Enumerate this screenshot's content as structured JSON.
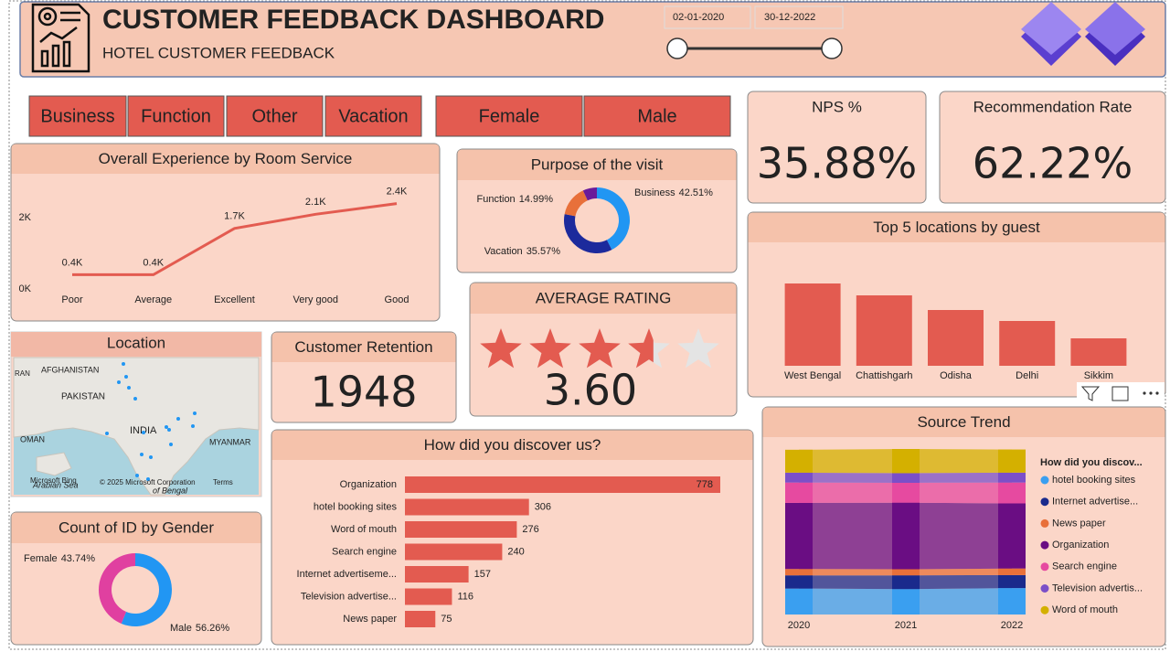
{
  "header": {
    "title": "CUSTOMER FEEDBACK DASHBOARD",
    "subtitle": "HOTEL CUSTOMER  FEEDBACK",
    "date_start": "02-01-2020",
    "date_end": "30-12-2022"
  },
  "slicers": {
    "purpose": [
      "Business",
      "Function",
      "Other",
      "Vacation"
    ],
    "gender": [
      "Female",
      "Male"
    ]
  },
  "kpis": [
    {
      "title": "NPS %",
      "value": "35.88%"
    },
    {
      "title": "Recommendation Rate",
      "value": "62.22%"
    },
    {
      "title": "Customer Retention",
      "value": "1948"
    }
  ],
  "rating": {
    "title": "AVERAGE RATING",
    "value": 3.6,
    "value_label": "3.60",
    "stars": 5
  },
  "map": {
    "title": "Location",
    "labels": [
      "RAN",
      "AFGHANISTAN",
      "PAKISTAN",
      "INDIA",
      "OMAN",
      "MYANMAR",
      "Arabian Sea",
      "of Bengal"
    ],
    "brand": "Microsoft Bing",
    "copyright": "© 2025 Microsoft Corporation",
    "terms": "Terms"
  },
  "chart_data": [
    {
      "type": "line",
      "title": "Overall Experience by Room Service",
      "categories": [
        "Poor",
        "Average",
        "Excellent",
        "Very good",
        "Good"
      ],
      "values": [
        400,
        400,
        1700,
        2100,
        2400
      ],
      "value_labels": [
        "0.4K",
        "0.4K",
        "1.7K",
        "2.1K",
        "2.4K"
      ],
      "color": "#e35b50",
      "ylim": [
        0,
        2800
      ],
      "yticks": [
        {
          "value": 0,
          "label": "0K"
        },
        {
          "value": 2000,
          "label": "2K"
        }
      ]
    },
    {
      "type": "donut",
      "title": "Purpose of the visit",
      "categories": [
        "Business",
        "Vacation",
        "Function",
        "Other"
      ],
      "values": [
        42.51,
        35.57,
        14.99,
        6.93
      ],
      "value_labels": [
        "42.51%",
        "35.57%",
        "14.99%",
        null
      ],
      "colors": [
        "#2196f3",
        "#1c2a9c",
        "#e8703a",
        "#6a1b9a"
      ]
    },
    {
      "type": "bar",
      "title": "Top 5 locations by guest",
      "categories": [
        "West Bengal",
        "Chattishgarh",
        "Odisha",
        "Delhi",
        "Sikkim"
      ],
      "values": [
        450,
        385,
        305,
        245,
        150
      ],
      "color": "#e35b50"
    },
    {
      "type": "barh",
      "title": "How did you discover us?",
      "categories": [
        "Organization",
        "hotel booking sites",
        "Word of mouth",
        "Search engine",
        "Internet advertiseme...",
        "Television advertise...",
        "News paper"
      ],
      "values": [
        778,
        306,
        276,
        240,
        157,
        116,
        75
      ],
      "color": "#e35b50"
    },
    {
      "type": "donut",
      "title": "Count of ID by Gender",
      "categories": [
        "Male",
        "Female"
      ],
      "values": [
        56.26,
        43.74
      ],
      "value_labels": [
        "56.26%",
        "43.74%"
      ],
      "colors": [
        "#2196f3",
        "#e040a0"
      ]
    },
    {
      "type": "ribbon",
      "title": "Source Trend",
      "legend_title": "How did you discov...",
      "categories": [
        "2020",
        "2021",
        "2022"
      ],
      "series": [
        {
          "name": "hotel booking sites",
          "color": "#3a9ff0",
          "values": [
            102,
            100,
            104
          ]
        },
        {
          "name": "Internet advertise...",
          "color": "#1a2a8c",
          "values": [
            52,
            54,
            51
          ]
        },
        {
          "name": "News paper",
          "color": "#e8703a",
          "values": [
            25,
            24,
            26
          ]
        },
        {
          "name": "Organization",
          "color": "#6a0d83",
          "values": [
            260,
            262,
            256
          ]
        },
        {
          "name": "Search engine",
          "color": "#e64aa0",
          "values": [
            80,
            78,
            82
          ]
        },
        {
          "name": "Television advertis...",
          "color": "#7b4fc8",
          "values": [
            39,
            38,
            39
          ]
        },
        {
          "name": "Word of mouth",
          "color": "#d4b000",
          "values": [
            90,
            95,
            91
          ]
        }
      ]
    }
  ]
}
